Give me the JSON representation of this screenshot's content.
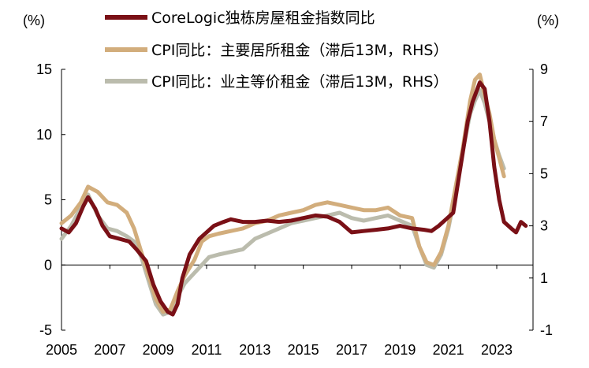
{
  "chart_data": {
    "type": "line",
    "title": "",
    "left_axis": {
      "unit_label": "(%)",
      "ylim": [
        -5,
        15
      ],
      "ticks": [
        -5,
        0,
        5,
        10,
        15
      ]
    },
    "right_axis": {
      "unit_label": "(%)",
      "ylim": [
        -1,
        9
      ],
      "ticks": [
        -1,
        1,
        3,
        5,
        7,
        9
      ]
    },
    "x_axis": {
      "xlim": [
        2005,
        2024.5
      ],
      "ticks": [
        2005,
        2007,
        2009,
        2011,
        2013,
        2015,
        2017,
        2019,
        2021,
        2023
      ]
    },
    "legend_position": "top-center",
    "series": [
      {
        "name": "CoreLogic独栋房屋租金指数同比",
        "axis": "left",
        "color": "#7a1016",
        "x": [
          2005.0,
          2005.3,
          2005.6,
          2005.9,
          2006.1,
          2006.4,
          2006.7,
          2007.0,
          2007.4,
          2007.8,
          2008.1,
          2008.5,
          2008.8,
          2009.1,
          2009.4,
          2009.6,
          2009.8,
          2010.0,
          2010.3,
          2010.7,
          2011.0,
          2011.3,
          2011.7,
          2012.0,
          2012.5,
          2013.0,
          2013.5,
          2014.0,
          2014.5,
          2015.0,
          2015.5,
          2016.0,
          2016.5,
          2017.0,
          2017.5,
          2018.0,
          2018.5,
          2019.0,
          2019.5,
          2020.0,
          2020.3,
          2020.6,
          2020.9,
          2021.2,
          2021.5,
          2021.8,
          2022.0,
          2022.3,
          2022.5,
          2022.7,
          2022.9,
          2023.1,
          2023.3,
          2023.6,
          2023.8,
          2024.0,
          2024.2
        ],
        "values": [
          2.8,
          2.5,
          3.2,
          4.5,
          5.2,
          4.3,
          3.0,
          2.2,
          2.0,
          1.8,
          1.2,
          0.3,
          -1.5,
          -2.8,
          -3.6,
          -3.8,
          -3.0,
          -1.0,
          0.8,
          2.0,
          2.5,
          3.0,
          3.3,
          3.5,
          3.3,
          3.3,
          3.4,
          3.3,
          3.4,
          3.6,
          3.8,
          3.7,
          3.3,
          2.5,
          2.6,
          2.7,
          2.8,
          3.0,
          2.8,
          2.7,
          2.6,
          3.0,
          3.5,
          4.0,
          7.5,
          11.0,
          12.5,
          14.0,
          13.5,
          11.0,
          7.5,
          5.0,
          3.3,
          2.8,
          2.5,
          3.3,
          3.0
        ]
      },
      {
        "name": "CPI同比：主要居所租金（滞后13M，RHS）",
        "axis": "right",
        "color": "#d2ad7c",
        "x": [
          2005.0,
          2005.4,
          2005.8,
          2006.1,
          2006.5,
          2006.9,
          2007.3,
          2007.7,
          2008.0,
          2008.3,
          2008.6,
          2008.9,
          2009.2,
          2009.5,
          2009.8,
          2010.1,
          2010.5,
          2010.8,
          2011.1,
          2011.5,
          2012.0,
          2012.5,
          2013.0,
          2013.5,
          2014.0,
          2014.5,
          2015.0,
          2015.5,
          2016.0,
          2016.5,
          2017.0,
          2017.5,
          2018.0,
          2018.5,
          2019.0,
          2019.5,
          2019.8,
          2020.1,
          2020.4,
          2020.7,
          2021.0,
          2021.3,
          2021.6,
          2021.9,
          2022.1,
          2022.3,
          2022.5,
          2022.7,
          2022.9,
          2023.1,
          2023.3
        ],
        "values": [
          3.1,
          3.4,
          3.9,
          4.5,
          4.3,
          3.9,
          3.8,
          3.5,
          2.9,
          2.0,
          1.1,
          0.2,
          -0.3,
          -0.2,
          0.5,
          1.1,
          1.7,
          2.4,
          2.6,
          2.7,
          2.8,
          2.9,
          3.1,
          3.2,
          3.4,
          3.5,
          3.6,
          3.8,
          3.9,
          3.8,
          3.7,
          3.6,
          3.6,
          3.7,
          3.4,
          3.3,
          2.2,
          1.6,
          1.5,
          2.0,
          3.0,
          4.5,
          6.0,
          7.8,
          8.6,
          8.8,
          8.0,
          7.3,
          6.3,
          5.6,
          4.9
        ]
      },
      {
        "name": "CPI同比：业主等价租金（滞后13M，RHS）",
        "axis": "right",
        "color": "#bbbcad",
        "x": [
          2005.0,
          2005.4,
          2005.8,
          2006.1,
          2006.5,
          2006.9,
          2007.3,
          2007.7,
          2008.0,
          2008.3,
          2008.6,
          2008.9,
          2009.2,
          2009.5,
          2009.8,
          2010.1,
          2010.5,
          2010.8,
          2011.1,
          2011.5,
          2012.0,
          2012.5,
          2013.0,
          2013.5,
          2014.0,
          2014.5,
          2015.0,
          2015.5,
          2016.0,
          2016.5,
          2017.0,
          2017.5,
          2018.0,
          2018.5,
          2019.0,
          2019.5,
          2019.8,
          2020.1,
          2020.4,
          2020.7,
          2021.0,
          2021.3,
          2021.6,
          2021.9,
          2022.1,
          2022.3,
          2022.5,
          2022.7,
          2022.9,
          2023.1,
          2023.3
        ],
        "values": [
          2.5,
          3.0,
          3.7,
          4.2,
          3.4,
          2.9,
          2.8,
          2.6,
          2.4,
          1.8,
          0.9,
          0.0,
          -0.4,
          -0.3,
          0.3,
          0.8,
          1.2,
          1.5,
          1.8,
          1.9,
          2.0,
          2.1,
          2.5,
          2.7,
          2.9,
          3.1,
          3.2,
          3.3,
          3.4,
          3.5,
          3.3,
          3.2,
          3.3,
          3.4,
          3.2,
          3.0,
          2.2,
          1.5,
          1.4,
          1.9,
          2.9,
          4.3,
          5.9,
          7.3,
          7.8,
          8.2,
          7.7,
          7.0,
          6.3,
          5.7,
          5.2
        ]
      }
    ]
  }
}
